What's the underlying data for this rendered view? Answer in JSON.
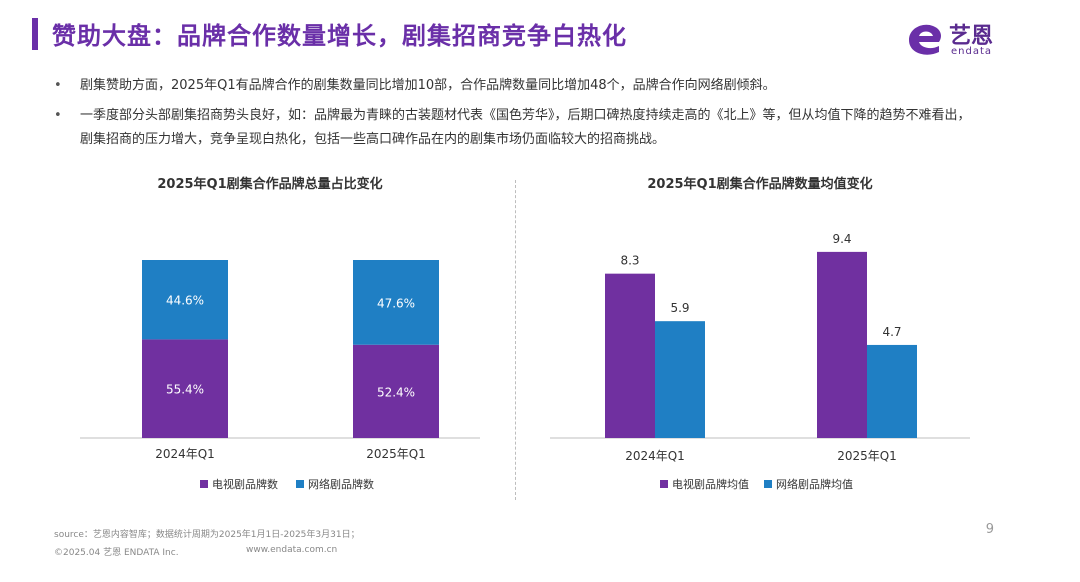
{
  "header": {
    "title": "赞助大盘：品牌合作数量增长，剧集招商竞争白热化",
    "logo_text": "艺恩",
    "logo_sub": "endata",
    "accent": "#6a2fa8"
  },
  "bullets": [
    {
      "symbol": "•",
      "text": "剧集赞助方面，2025年Q1有品牌合作的剧集数量同比增加10部，合作品牌数量同比增加48个，品牌合作向网络剧倾斜。"
    },
    {
      "symbol": "•",
      "text": "一季度部分头部剧集招商势头良好，如：品牌最为青睐的古装题材代表《国色芳华》，后期口碑热度持续走高的《北上》等，但从均值下降的趋势不难看出，剧集招商的压力增大，竞争呈现白热化，包括一些高口碑作品在内的剧集市场仍面临较大的招商挑战。"
    }
  ],
  "chart_data": [
    {
      "type": "bar",
      "stacked": true,
      "title": "2025年Q1剧集合作品牌总量占比变化",
      "categories": [
        "2024年Q1",
        "2025年Q1"
      ],
      "series": [
        {
          "name": "电视剧品牌数",
          "values": [
            55.4,
            52.4
          ],
          "labels": [
            "55.4%",
            "52.4%"
          ],
          "color": "#7030a0"
        },
        {
          "name": "网络剧品牌数",
          "values": [
            44.6,
            47.6
          ],
          "labels": [
            "44.6%",
            "47.6%"
          ],
          "color": "#1f7fc4"
        }
      ],
      "ylim": [
        0,
        100
      ],
      "legend_position": "bottom"
    },
    {
      "type": "bar",
      "stacked": false,
      "title": "2025年Q1剧集合作品牌数量均值变化",
      "categories": [
        "2024年Q1",
        "2025年Q1"
      ],
      "series": [
        {
          "name": "电视剧品牌均值",
          "values": [
            8.3,
            9.4
          ],
          "color": "#7030a0"
        },
        {
          "name": "网络剧品牌均值",
          "values": [
            5.9,
            4.7
          ],
          "color": "#1f7fc4"
        }
      ],
      "ylim": [
        0,
        10
      ],
      "legend_position": "bottom"
    }
  ],
  "footer": {
    "source": "source：艺恩内容智库；数据统计周期为2025年1月1日-2025年3月31日；",
    "copyright": "©2025.04 艺恩 ENDATA Inc.",
    "website": "www.endata.com.cn",
    "page_number": "9"
  }
}
